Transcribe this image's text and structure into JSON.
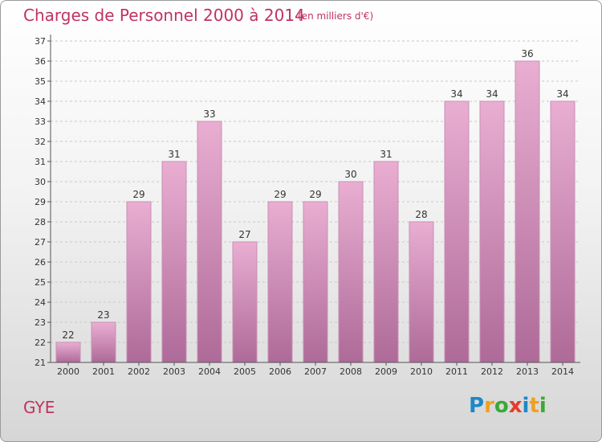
{
  "header": {
    "title": "Charges de Personnel 2000 à 2014",
    "subtitle": "(en milliers d'€)"
  },
  "footer": {
    "place": "GYE",
    "logo": {
      "text": "Proxiti",
      "letters": [
        {
          "ch": "P",
          "color": "#1e88c8"
        },
        {
          "ch": "r",
          "color": "#f0a020"
        },
        {
          "ch": "o",
          "color": "#3aa935"
        },
        {
          "ch": "x",
          "color": "#e53b2c"
        },
        {
          "ch": "i",
          "color": "#1e88c8"
        },
        {
          "ch": "t",
          "color": "#f0a020"
        },
        {
          "ch": "i",
          "color": "#3aa935"
        }
      ]
    }
  },
  "colors": {
    "bar_top": "#e9aed2",
    "bar_bottom": "#ae6a98",
    "bar_edge": "#c990b4",
    "grid": "#c9c9c9",
    "axis": "#555555",
    "accent": "#c0335f"
  },
  "chart_data": {
    "type": "bar",
    "title": "Charges de Personnel 2000 à 2014",
    "subtitle": "(en milliers d'€)",
    "categories": [
      "2000",
      "2001",
      "2002",
      "2003",
      "2004",
      "2005",
      "2006",
      "2007",
      "2008",
      "2009",
      "2010",
      "2011",
      "2012",
      "2013",
      "2014"
    ],
    "values": [
      22,
      23,
      29,
      31,
      33,
      27,
      29,
      29,
      30,
      31,
      28,
      34,
      34,
      36,
      34
    ],
    "ylim": [
      21,
      37
    ],
    "yticks": [
      21,
      22,
      23,
      24,
      25,
      26,
      27,
      28,
      29,
      30,
      31,
      32,
      33,
      34,
      35,
      36,
      37
    ],
    "grid": true,
    "data_labels": true
  }
}
